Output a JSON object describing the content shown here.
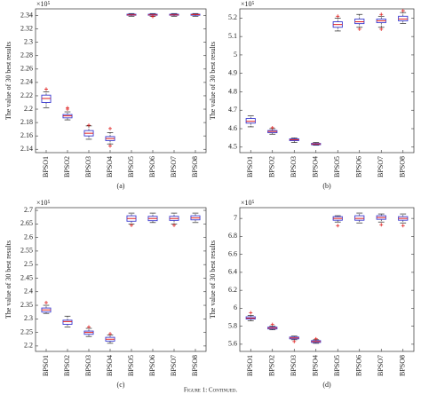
{
  "caption": "Figure 1: Continued.",
  "chart_data": [
    {
      "type": "box",
      "label": "(a)",
      "exponent": "×10⁵",
      "ylabel": "The value of 30 best results",
      "categories": [
        "BPSO1",
        "BPSO2",
        "BPSO3",
        "BPSO4",
        "BPSO5",
        "BPSO6",
        "BPSO7",
        "BPSO8"
      ],
      "ylim": [
        2.135,
        2.35
      ],
      "yticks": [
        2.14,
        2.16,
        2.18,
        2.2,
        2.22,
        2.24,
        2.26,
        2.28,
        2.3,
        2.32,
        2.34
      ],
      "box_color": "#3a3ad0",
      "median_color": "#e02020",
      "outlier_color": "#e02020",
      "boxes": [
        {
          "low": 2.202,
          "q1": 2.21,
          "median": 2.216,
          "q3": 2.221,
          "high": 2.226,
          "outliers": [
            2.23
          ]
        },
        {
          "low": 2.184,
          "q1": 2.187,
          "median": 2.19,
          "q3": 2.192,
          "high": 2.196,
          "outliers": [
            2.2,
            2.202
          ]
        },
        {
          "low": 2.155,
          "q1": 2.16,
          "median": 2.164,
          "q3": 2.168,
          "high": 2.175,
          "outliers": [
            2.176
          ]
        },
        {
          "low": 2.148,
          "q1": 2.153,
          "median": 2.156,
          "q3": 2.159,
          "high": 2.165,
          "outliers": [
            2.171,
            2.145
          ]
        },
        {
          "low": 2.339,
          "q1": 2.3405,
          "median": 2.341,
          "q3": 2.342,
          "high": 2.343,
          "outliers": []
        },
        {
          "low": 2.339,
          "q1": 2.3405,
          "median": 2.341,
          "q3": 2.342,
          "high": 2.343,
          "outliers": [
            2.3385
          ]
        },
        {
          "low": 2.339,
          "q1": 2.3405,
          "median": 2.341,
          "q3": 2.342,
          "high": 2.343,
          "outliers": []
        },
        {
          "low": 2.339,
          "q1": 2.3405,
          "median": 2.3415,
          "q3": 2.342,
          "high": 2.343,
          "outliers": []
        }
      ]
    },
    {
      "type": "box",
      "label": "(b)",
      "exponent": "×10⁵",
      "ylabel": "The value of 30 best results",
      "categories": [
        "BPSO1",
        "BPSO2",
        "BPSO3",
        "BPSO4",
        "BPSO5",
        "BPSO6",
        "BPSO7",
        "BPSO8"
      ],
      "ylim": [
        4.47,
        5.25
      ],
      "yticks": [
        4.5,
        4.6,
        4.7,
        4.8,
        4.9,
        5,
        5.1,
        5.2
      ],
      "box_color": "#3a3ad0",
      "median_color": "#e02020",
      "outlier_color": "#e02020",
      "boxes": [
        {
          "low": 4.61,
          "q1": 4.63,
          "median": 4.64,
          "q3": 4.655,
          "high": 4.67,
          "outliers": []
        },
        {
          "low": 4.57,
          "q1": 4.578,
          "median": 4.585,
          "q3": 4.59,
          "high": 4.6,
          "outliers": [
            4.605
          ]
        },
        {
          "low": 4.525,
          "q1": 4.535,
          "median": 4.54,
          "q3": 4.545,
          "high": 4.55,
          "outliers": []
        },
        {
          "low": 4.51,
          "q1": 4.513,
          "median": 4.517,
          "q3": 4.52,
          "high": 4.525,
          "outliers": []
        },
        {
          "low": 5.13,
          "q1": 5.15,
          "median": 5.165,
          "q3": 5.18,
          "high": 5.2,
          "outliers": [
            5.21
          ]
        },
        {
          "low": 5.15,
          "q1": 5.17,
          "median": 5.18,
          "q3": 5.195,
          "high": 5.22,
          "outliers": [
            5.14
          ]
        },
        {
          "low": 5.15,
          "q1": 5.175,
          "median": 5.185,
          "q3": 5.195,
          "high": 5.21,
          "outliers": [
            5.14,
            5.22
          ]
        },
        {
          "low": 5.17,
          "q1": 5.185,
          "median": 5.195,
          "q3": 5.21,
          "high": 5.23,
          "outliers": [
            5.24
          ]
        }
      ]
    },
    {
      "type": "box",
      "label": "(c)",
      "exponent": "×10⁵",
      "ylabel": "The value of 30 best results",
      "categories": [
        "BPSO1",
        "BPSO2",
        "BPSO3",
        "BPSO4",
        "BPSO5",
        "BPSO6",
        "BPSO7",
        "BPSO8"
      ],
      "ylim": [
        2.18,
        2.71
      ],
      "yticks": [
        2.2,
        2.25,
        2.3,
        2.35,
        2.4,
        2.45,
        2.5,
        2.55,
        2.6,
        2.65,
        2.7
      ],
      "box_color": "#3a3ad0",
      "median_color": "#e02020",
      "outlier_color": "#e02020",
      "boxes": [
        {
          "low": 2.32,
          "q1": 2.325,
          "median": 2.333,
          "q3": 2.34,
          "high": 2.35,
          "outliers": [
            2.36
          ]
        },
        {
          "low": 2.27,
          "q1": 2.28,
          "median": 2.29,
          "q3": 2.295,
          "high": 2.31,
          "outliers": []
        },
        {
          "low": 2.235,
          "q1": 2.243,
          "median": 2.25,
          "q3": 2.255,
          "high": 2.265,
          "outliers": [
            2.27
          ]
        },
        {
          "low": 2.21,
          "q1": 2.218,
          "median": 2.225,
          "q3": 2.232,
          "high": 2.24,
          "outliers": [
            2.245
          ]
        },
        {
          "low": 2.65,
          "q1": 2.66,
          "median": 2.67,
          "q3": 2.68,
          "high": 2.69,
          "outliers": [
            2.645
          ]
        },
        {
          "low": 2.655,
          "q1": 2.662,
          "median": 2.67,
          "q3": 2.678,
          "high": 2.69,
          "outliers": []
        },
        {
          "low": 2.65,
          "q1": 2.663,
          "median": 2.67,
          "q3": 2.678,
          "high": 2.69,
          "outliers": [
            2.645
          ]
        },
        {
          "low": 2.655,
          "q1": 2.665,
          "median": 2.672,
          "q3": 2.68,
          "high": 2.69,
          "outliers": []
        }
      ]
    },
    {
      "type": "box",
      "label": "(d)",
      "exponent": "×10⁵",
      "ylabel": "The value of 30 best results",
      "categories": [
        "BPSO1",
        "BPSO2",
        "BPSO3",
        "BPSO4",
        "BPSO5",
        "BPSO6",
        "BPSO7",
        "BPSO8"
      ],
      "ylim": [
        5.52,
        7.12
      ],
      "yticks": [
        5.6,
        5.8,
        6,
        6.2,
        6.4,
        6.6,
        6.8,
        7
      ],
      "box_color": "#3a3ad0",
      "median_color": "#e02020",
      "outlier_color": "#e02020",
      "boxes": [
        {
          "low": 5.86,
          "q1": 5.88,
          "median": 5.89,
          "q3": 5.905,
          "high": 5.92,
          "outliers": [
            5.95
          ]
        },
        {
          "low": 5.76,
          "q1": 5.77,
          "median": 5.78,
          "q3": 5.79,
          "high": 5.8,
          "outliers": [
            5.82
          ]
        },
        {
          "low": 5.65,
          "q1": 5.66,
          "median": 5.67,
          "q3": 5.68,
          "high": 5.69,
          "outliers": [
            5.63
          ]
        },
        {
          "low": 5.61,
          "q1": 5.62,
          "median": 5.63,
          "q3": 5.64,
          "high": 5.65,
          "outliers": [
            5.66
          ]
        },
        {
          "low": 6.96,
          "q1": 6.98,
          "median": 7,
          "q3": 7.02,
          "high": 7.03,
          "outliers": [
            6.92
          ]
        },
        {
          "low": 6.95,
          "q1": 6.98,
          "median": 7,
          "q3": 7.03,
          "high": 7.06,
          "outliers": []
        },
        {
          "low": 6.96,
          "q1": 6.99,
          "median": 7.01,
          "q3": 7.03,
          "high": 7.05,
          "outliers": [
            6.93
          ]
        },
        {
          "low": 6.95,
          "q1": 6.98,
          "median": 7,
          "q3": 7.02,
          "high": 7.05,
          "outliers": [
            6.92
          ]
        }
      ]
    }
  ]
}
